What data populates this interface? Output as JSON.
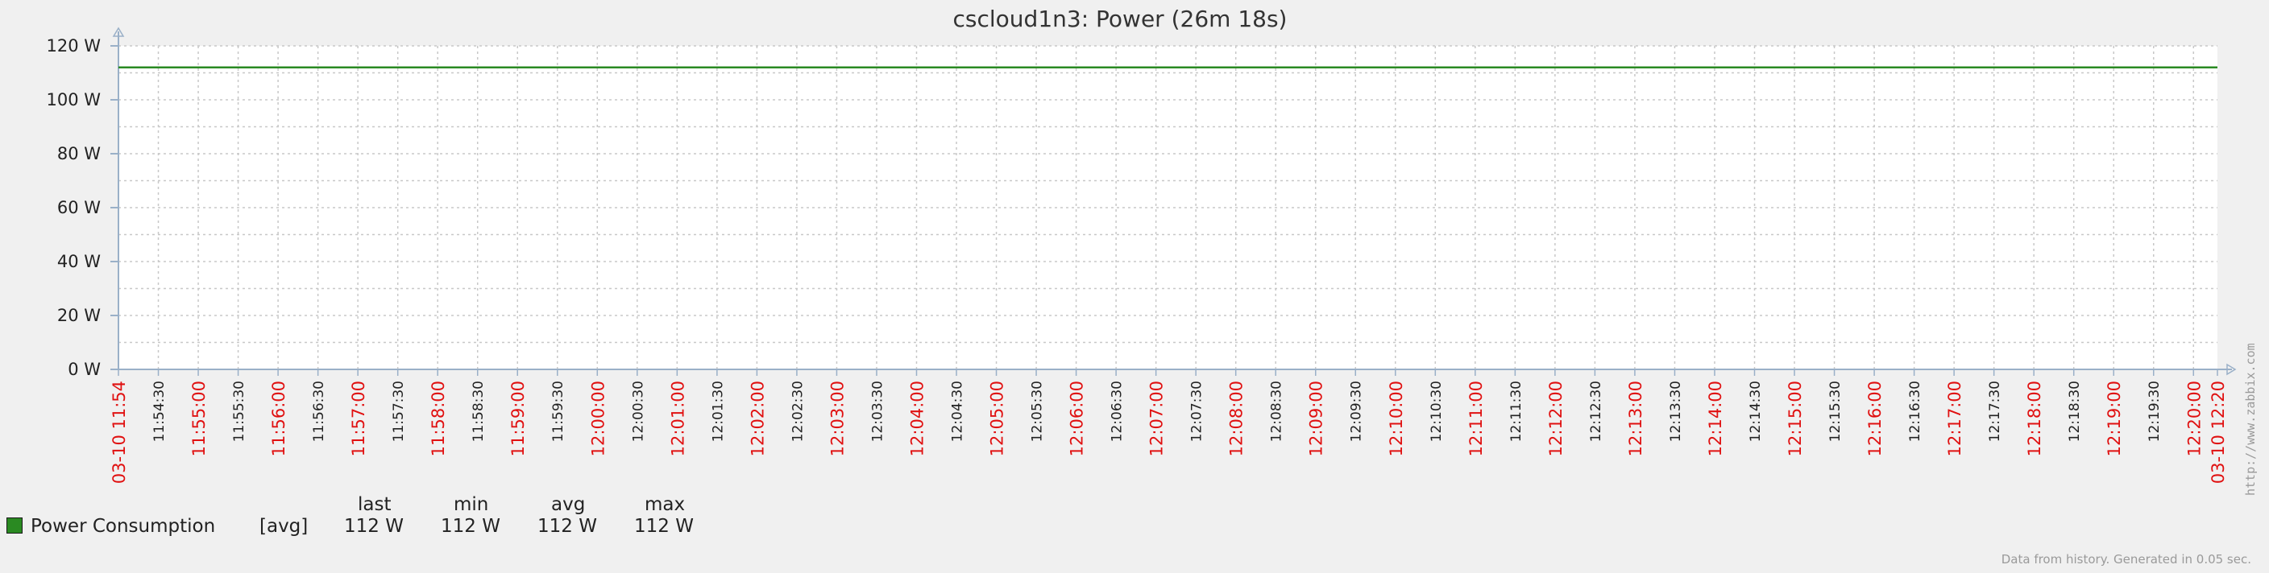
{
  "colors": {
    "background": "#f0f0f0",
    "plot_background": "#ffffff",
    "series_line": "#2a8a22",
    "grid": "#c8c8c8",
    "axis": "#9ab0c8",
    "major_tick_label": "#e01010",
    "minor_tick_label": "#222222"
  },
  "chart_data": {
    "type": "line",
    "title": "cscloud1n3: Power (26m 18s)",
    "ylabel": "",
    "xlabel": "",
    "y_unit": "W",
    "ylim": [
      0,
      120
    ],
    "y_ticks": [
      "0 W",
      "20 W",
      "40 W",
      "60 W",
      "80 W",
      "100 W",
      "120 W"
    ],
    "x_range": [
      "11:54:00",
      "12:20:18"
    ],
    "x_tick_labels": [
      "03-10 11:54",
      "11:54:30",
      "11:55:00",
      "11:55:30",
      "11:56:00",
      "11:56:30",
      "11:57:00",
      "11:57:30",
      "11:58:00",
      "11:58:30",
      "11:59:00",
      "11:59:30",
      "12:00:00",
      "12:00:30",
      "12:01:00",
      "12:01:30",
      "12:02:00",
      "12:02:30",
      "12:03:00",
      "12:03:30",
      "12:04:00",
      "12:04:30",
      "12:05:00",
      "12:05:30",
      "12:06:00",
      "12:06:30",
      "12:07:00",
      "12:07:30",
      "12:08:00",
      "12:08:30",
      "12:09:00",
      "12:09:30",
      "12:10:00",
      "12:10:30",
      "12:11:00",
      "12:11:30",
      "12:12:00",
      "12:12:30",
      "12:13:00",
      "12:13:30",
      "12:14:00",
      "12:14:30",
      "12:15:00",
      "12:15:30",
      "12:16:00",
      "12:16:30",
      "12:17:00",
      "12:17:30",
      "12:18:00",
      "12:18:30",
      "12:19:00",
      "12:19:30",
      "12:20:00",
      "03-10 12:20"
    ],
    "series": [
      {
        "name": "Power Consumption",
        "x": [
          "11:54:00",
          "12:20:18"
        ],
        "y": [
          112,
          112
        ]
      }
    ],
    "grid": true,
    "legend_placement": "bottom-left"
  },
  "legend": {
    "headers": {
      "last": "last",
      "min": "min",
      "avg": "avg",
      "max": "max"
    },
    "items": [
      {
        "name": "Power Consumption",
        "func": "[avg]",
        "last": "112 W",
        "min": "112 W",
        "avg": "112 W",
        "max": "112 W",
        "color": "#2a8a22"
      }
    ]
  },
  "footer": {
    "note": "Data from history. Generated in 0.05 sec.",
    "watermark": "http://www.zabbix.com"
  }
}
